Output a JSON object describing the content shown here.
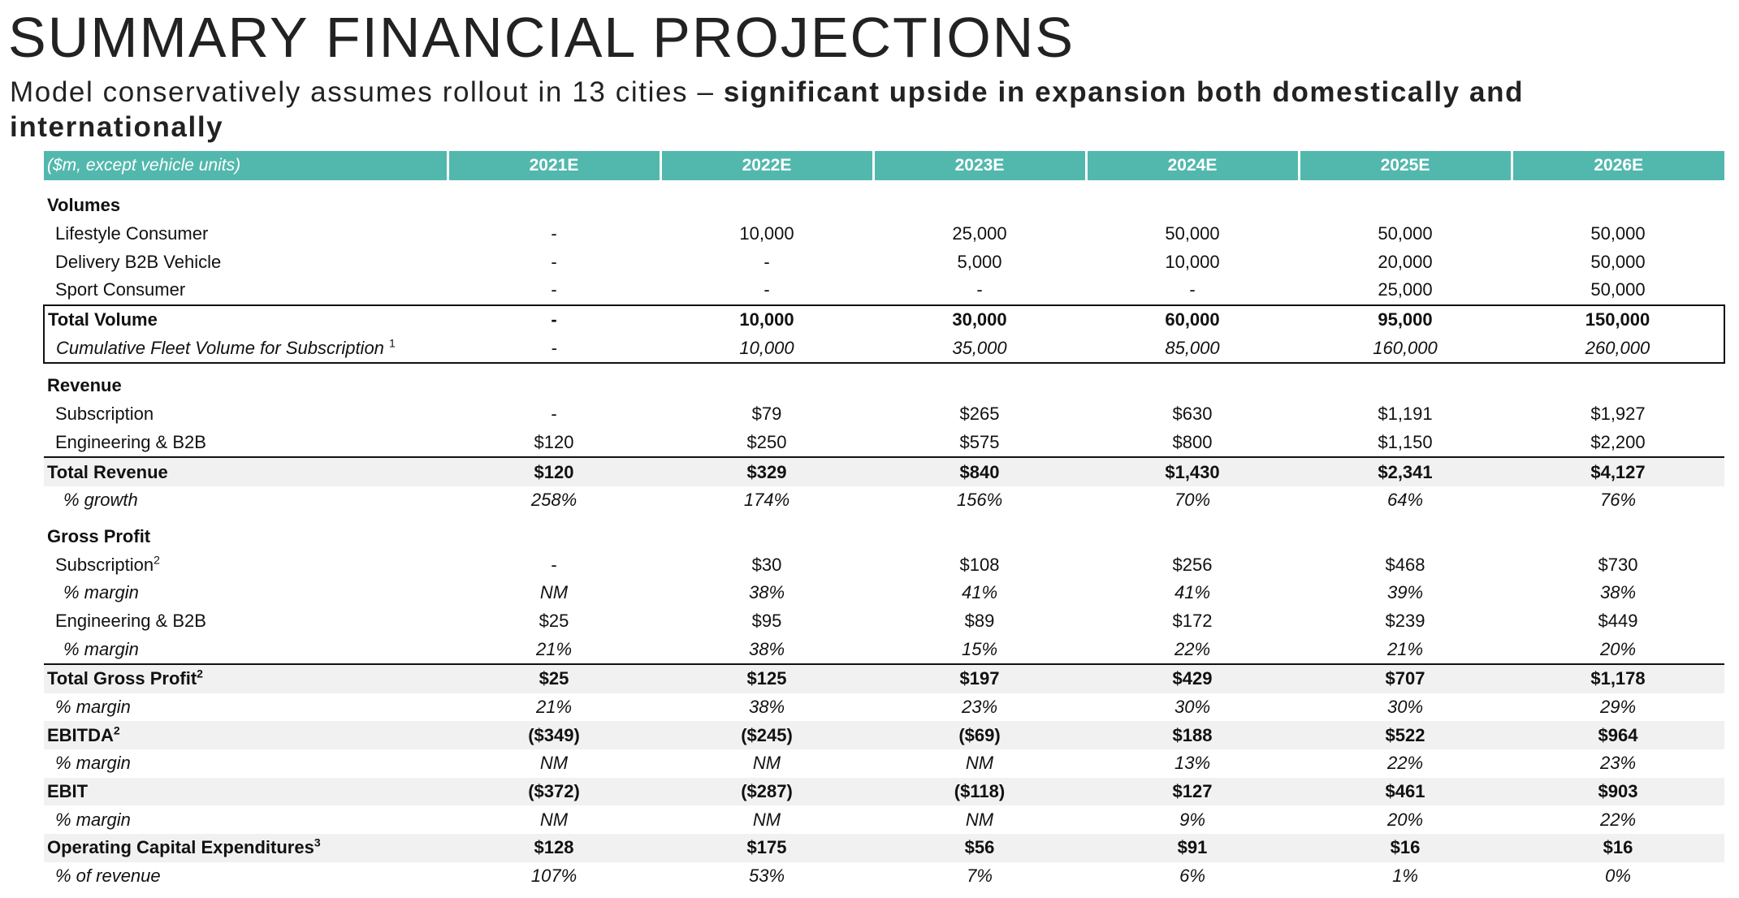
{
  "title": "SUMMARY FINANCIAL PROJECTIONS",
  "subtitle": {
    "normal": "Model conservatively assumes rollout in 13 cities – ",
    "bold": "significant upside in expansion both domestically and internationally"
  },
  "table": {
    "header_label": "($m, except vehicle units)",
    "years": [
      "2021E",
      "2022E",
      "2023E",
      "2024E",
      "2025E",
      "2026E"
    ],
    "sections": {
      "volumes": "Volumes",
      "revenue": "Revenue",
      "gross_profit": "Gross Profit"
    },
    "rows": {
      "lifestyle": {
        "label": "Lifestyle Consumer",
        "values": [
          "-",
          "10,000",
          "25,000",
          "50,000",
          "50,000",
          "50,000"
        ]
      },
      "delivery": {
        "label": "Delivery B2B Vehicle",
        "values": [
          "-",
          "-",
          "5,000",
          "10,000",
          "20,000",
          "50,000"
        ]
      },
      "sport": {
        "label": "Sport Consumer",
        "values": [
          "-",
          "-",
          "-",
          "-",
          "25,000",
          "50,000"
        ]
      },
      "total_volume": {
        "label": "Total Volume",
        "values": [
          "-",
          "10,000",
          "30,000",
          "60,000",
          "95,000",
          "150,000"
        ]
      },
      "cumulative": {
        "label": "Cumulative Fleet Volume for Subscription ",
        "sup": "1",
        "values": [
          "-",
          "10,000",
          "35,000",
          "85,000",
          "160,000",
          "260,000"
        ]
      },
      "rev_subscription": {
        "label": "Subscription",
        "values": [
          "-",
          "$79",
          "$265",
          "$630",
          "$1,191",
          "$1,927"
        ]
      },
      "rev_engineering": {
        "label": "Engineering & B2B",
        "values": [
          "$120",
          "$250",
          "$575",
          "$800",
          "$1,150",
          "$2,200"
        ]
      },
      "total_revenue": {
        "label": "Total Revenue",
        "values": [
          "$120",
          "$329",
          "$840",
          "$1,430",
          "$2,341",
          "$4,127"
        ]
      },
      "rev_growth": {
        "label": "% growth",
        "values": [
          "258%",
          "174%",
          "156%",
          "70%",
          "64%",
          "76%"
        ]
      },
      "gp_subscription": {
        "label": "Subscription",
        "sup": "2",
        "values": [
          "-",
          "$30",
          "$108",
          "$256",
          "$468",
          "$730"
        ]
      },
      "gp_sub_margin": {
        "label": "% margin",
        "values": [
          "NM",
          "38%",
          "41%",
          "41%",
          "39%",
          "38%"
        ]
      },
      "gp_engineering": {
        "label": "Engineering & B2B",
        "values": [
          "$25",
          "$95",
          "$89",
          "$172",
          "$239",
          "$449"
        ]
      },
      "gp_eng_margin": {
        "label": "% margin",
        "values": [
          "21%",
          "38%",
          "15%",
          "22%",
          "21%",
          "20%"
        ]
      },
      "total_gp": {
        "label": "Total Gross Profit",
        "sup": "2",
        "values": [
          "$25",
          "$125",
          "$197",
          "$429",
          "$707",
          "$1,178"
        ]
      },
      "total_gp_margin": {
        "label": "% margin",
        "values": [
          "21%",
          "38%",
          "23%",
          "30%",
          "30%",
          "29%"
        ]
      },
      "ebitda": {
        "label": "EBITDA",
        "sup": "2",
        "values": [
          "($349)",
          "($245)",
          "($69)",
          "$188",
          "$522",
          "$964"
        ]
      },
      "ebitda_margin": {
        "label": "% margin",
        "values": [
          "NM",
          "NM",
          "NM",
          "13%",
          "22%",
          "23%"
        ]
      },
      "ebit": {
        "label": "EBIT",
        "values": [
          "($372)",
          "($287)",
          "($118)",
          "$127",
          "$461",
          "$903"
        ]
      },
      "ebit_margin": {
        "label": "% margin",
        "values": [
          "NM",
          "NM",
          "NM",
          "9%",
          "20%",
          "22%"
        ]
      },
      "capex": {
        "label": "Operating Capital Expenditures",
        "sup": "3",
        "values": [
          "$128",
          "$175",
          "$56",
          "$91",
          "$16",
          "$16"
        ]
      },
      "capex_pct": {
        "label": "% of revenue",
        "values": [
          "107%",
          "53%",
          "7%",
          "6%",
          "1%",
          "0%"
        ]
      }
    }
  }
}
